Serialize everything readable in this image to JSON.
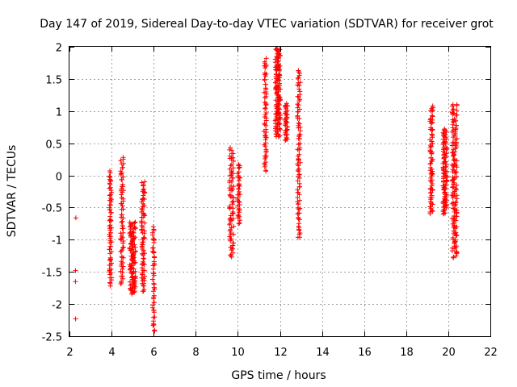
{
  "chart_data": {
    "type": "scatter",
    "title": "Day 147 of 2019, Sidereal Day-to-day VTEC variation (SDTVAR) for receiver grot",
    "xlabel": "GPS time / hours",
    "ylabel": "SDTVAR / TECUs",
    "xlim": [
      2,
      22
    ],
    "ylim": [
      -2.5,
      2
    ],
    "grid": true,
    "marker": "+",
    "colors": {
      "points": "#ff0000",
      "grid": "#a0a0a0",
      "axes": "#000000"
    },
    "x_ticks": [
      "2",
      "4",
      "6",
      "8",
      "10",
      "12",
      "14",
      "16",
      "18",
      "20",
      "22"
    ],
    "y_ticks": [
      "2",
      "1.5",
      "1",
      "0.5",
      "0",
      "-0.5",
      "-1",
      "-1.5",
      "-2",
      "-2.5"
    ],
    "series": [
      {
        "name": "SDTVAR",
        "clusters": [
          {
            "x_center": 2.3,
            "x_spread": 0.02,
            "y_values": [
              -0.66,
              -1.48,
              -1.65,
              -2.23
            ]
          },
          {
            "x_center": 3.95,
            "x_spread": 0.06,
            "y_range": [
              -1.72,
              0.07
            ],
            "n": 70
          },
          {
            "x_center": 4.5,
            "x_spread": 0.07,
            "y_range": [
              -1.7,
              0.28
            ],
            "n": 70
          },
          {
            "x_center": 5.0,
            "x_spread": 0.14,
            "y_range": [
              -1.85,
              -0.72
            ],
            "n": 120
          },
          {
            "x_center": 5.5,
            "x_spread": 0.08,
            "y_range": [
              -1.8,
              -0.1
            ],
            "n": 80
          },
          {
            "x_center": 6.0,
            "x_spread": 0.05,
            "y_range": [
              -2.42,
              -0.8
            ],
            "n": 50
          },
          {
            "x_center": 9.7,
            "x_spread": 0.1,
            "y_range": [
              -1.27,
              0.43
            ],
            "n": 80
          },
          {
            "x_center": 10.05,
            "x_spread": 0.06,
            "y_range": [
              -0.75,
              0.18
            ],
            "n": 40
          },
          {
            "x_center": 11.3,
            "x_spread": 0.06,
            "y_range": [
              0.05,
              1.82
            ],
            "n": 60
          },
          {
            "x_center": 11.9,
            "x_spread": 0.12,
            "y_range": [
              0.6,
              1.98
            ],
            "n": 140
          },
          {
            "x_center": 12.3,
            "x_spread": 0.06,
            "y_range": [
              0.55,
              1.12
            ],
            "n": 40
          },
          {
            "x_center": 12.9,
            "x_spread": 0.07,
            "y_range": [
              -0.98,
              1.63
            ],
            "n": 90
          },
          {
            "x_center": 19.2,
            "x_spread": 0.07,
            "y_range": [
              -0.6,
              1.08
            ],
            "n": 80
          },
          {
            "x_center": 19.85,
            "x_spread": 0.1,
            "y_range": [
              -0.6,
              0.72
            ],
            "n": 110
          },
          {
            "x_center": 20.3,
            "x_spread": 0.12,
            "y_range": [
              -1.28,
              1.1
            ],
            "n": 150
          }
        ]
      }
    ]
  }
}
